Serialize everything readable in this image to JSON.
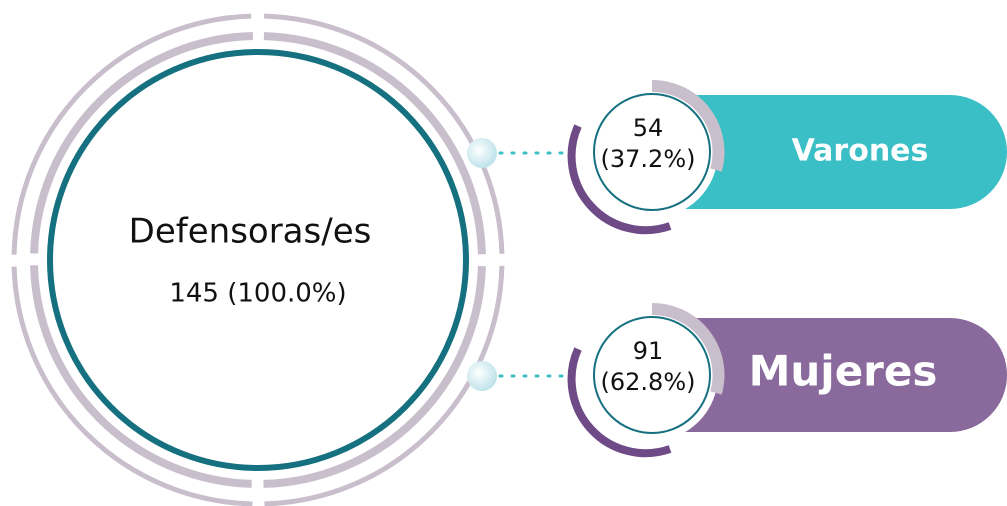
{
  "total": {
    "label": "Defensoras/es",
    "value": "145 (100.0%)"
  },
  "groups": [
    {
      "count": "54",
      "percent": "(37.2%)",
      "label": "Varones"
    },
    {
      "count": "91",
      "percent": "(62.8%)",
      "label": "Mujeres"
    }
  ]
}
